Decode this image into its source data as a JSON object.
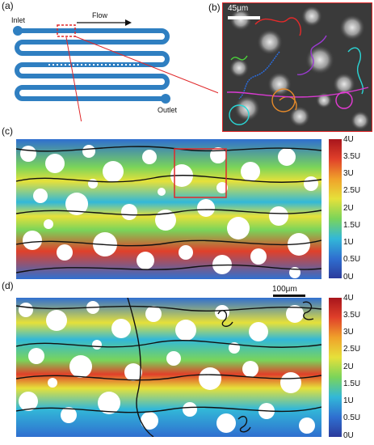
{
  "panel_a": {
    "label": "(a)",
    "inlet": "Inlet",
    "outlet": "Outlet",
    "flow": "Flow"
  },
  "panel_b": {
    "label": "(b)",
    "scale_bar": "45μm"
  },
  "panel_c": {
    "label": "(c)",
    "colorbar_ticks": [
      "4U",
      "3.5U",
      "3U",
      "2.5U",
      "2U",
      "1.5U",
      "1U",
      "0.5U",
      "0U"
    ]
  },
  "panel_d": {
    "label": "(d)",
    "scale_bar": "100μm",
    "colorbar_ticks": [
      "4U",
      "3.5U",
      "3U",
      "2.5U",
      "2U",
      "1.5U",
      "1U",
      "0.5U",
      "0U"
    ]
  },
  "colors": {
    "channel": "#2f7fc1",
    "highlight_box": "#e0282a",
    "colormap": [
      "#2c3b9c",
      "#2f6fd0",
      "#32b8d8",
      "#7ad45a",
      "#e6e13a",
      "#f0a12a",
      "#e0402a",
      "#a8151c"
    ]
  }
}
